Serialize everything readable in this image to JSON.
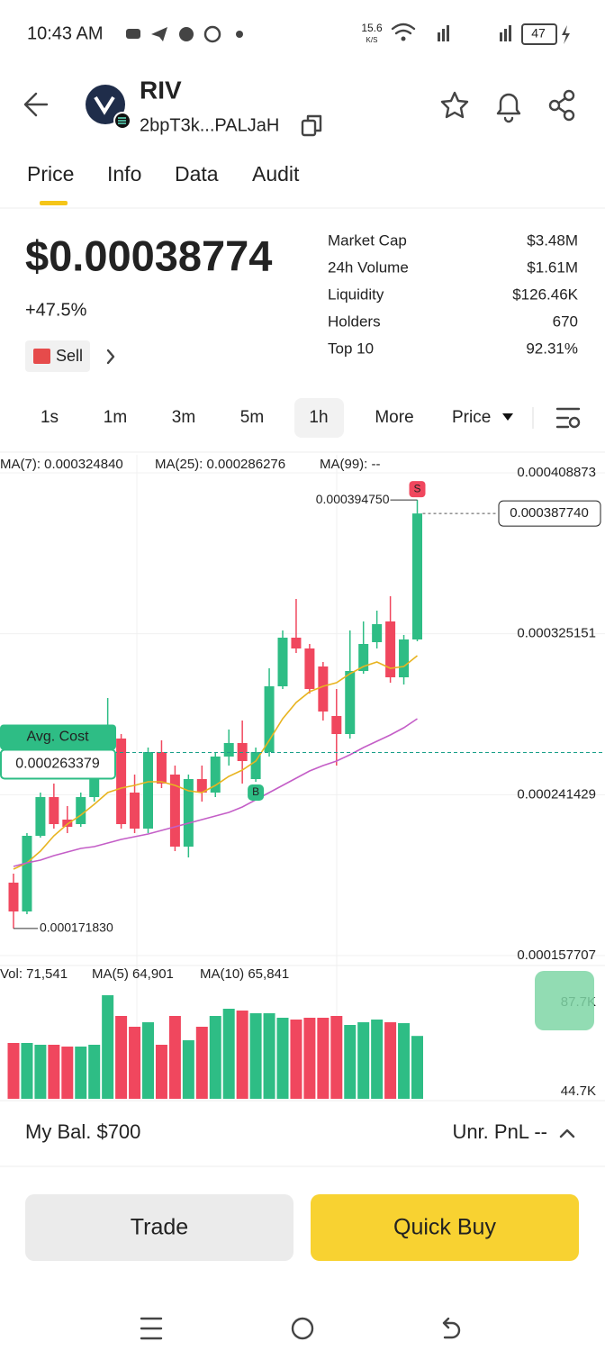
{
  "status_bar": {
    "time": "10:43 AM",
    "speed": "15.6",
    "speed_unit": "K/S",
    "battery": "47"
  },
  "header": {
    "symbol": "RIV",
    "address": "2bpT3k...PALJaH"
  },
  "tabs": [
    "Price",
    "Info",
    "Data",
    "Audit"
  ],
  "price": {
    "value": "$0.00038774",
    "change": "+47.5%",
    "sell": "Sell"
  },
  "stats": [
    {
      "label": "Market Cap",
      "value": "$3.48M"
    },
    {
      "label": "24h Volume",
      "value": "$1.61M"
    },
    {
      "label": "Liquidity",
      "value": "$126.46K"
    },
    {
      "label": "Holders",
      "value": "670"
    },
    {
      "label": "Top 10",
      "value": "92.31%"
    }
  ],
  "intervals": [
    "1s",
    "1m",
    "3m",
    "5m",
    "1h",
    "More"
  ],
  "price_menu": "Price",
  "chart_data": {
    "type": "candlestick",
    "up_color": "#2ebd85",
    "down_color": "#f0475e",
    "ylim": [
      0.000157707,
      0.000408873
    ],
    "yticks": [
      0.000408873,
      0.000325151,
      0.000241429,
      0.000157707
    ],
    "grid": true,
    "open": [
      0.00019566,
      0.000180665,
      0.000220027,
      0.000240177,
      0.000228462,
      0.000226119,
      0.000240177,
      0.000261264,
      0.000270636,
      0.00024252,
      0.000223776,
      0.000263607,
      0.000251892,
      0.000214404,
      0.000249549,
      0.00024252,
      0.000261264,
      0.000268293,
      0.000249549,
      0.000263607,
      0.000297815,
      0.000323119,
      0.000317496,
      0.000308124,
      0.000282351,
      0.000272979,
      0.000305781,
      0.000320776,
      0.000331554,
      0.000302501,
      0.000322182
    ],
    "high": [
      0.000200346,
      0.000221433,
      0.00024252,
      0.000247206,
      0.000235491,
      0.00024252,
      0.000272979,
      0.000291723,
      0.000272979,
      0.000251892,
      0.00026595,
      0.000269699,
      0.000256578,
      0.000251892,
      0.000256578,
      0.000263607,
      0.000275322,
      0.000280008,
      0.00026595,
      0.000307187,
      0.000326868,
      0.000343269,
      0.000319839,
      0.000310467,
      0.000296409,
      0.000326868,
      0.000331554,
      0.000337177,
      0.000344675,
      0.000324525,
      0.00039475
    ],
    "low": [
      0.00017183,
      0.000179259,
      0.00021909,
      0.000223776,
      0.000221433,
      0.000224713,
      0.000237834,
      0.000258921,
      0.000223776,
      0.000221433,
      0.000221433,
      0.000244863,
      0.000212061,
      0.000208781,
      0.000237834,
      0.000240177,
      0.000256578,
      0.000247206,
      0.000248143,
      0.000261264,
      0.000296409,
      0.000315153,
      0.000294066,
      0.000280008,
      0.000256578,
      0.000270636,
      0.000304375,
      0.000317496,
      0.000299689,
      0.000298752,
      0.000321245
    ],
    "close": [
      0.000180665,
      0.000220027,
      0.000240177,
      0.000226119,
      0.000224713,
      0.000240177,
      0.000270636,
      0.000270636,
      0.000226119,
      0.000223776,
      0.000263607,
      0.000247206,
      0.000214404,
      0.000249549,
      0.00024252,
      0.000261264,
      0.000268293,
      0.000258921,
      0.000263607,
      0.000297815,
      0.000323119,
      0.000317496,
      0.000296409,
      0.000284694,
      0.000272979,
      0.000305781,
      0.000319839,
      0.000330148,
      0.000302501,
      0.000322182,
      0.00038774
    ],
    "series": [
      {
        "name": "MA(7): 0.000324840",
        "color": "#e8b420",
        "values": [
          0.000202689,
          0.000205969,
          0.000212061,
          0.000220027,
          0.000226119,
          0.000230805,
          0.000236428,
          0.00024252,
          0.000244863,
          0.000246269,
          0.000248143,
          0.000248143,
          0.000246269,
          0.000243457,
          0.00024252,
          0.000246269,
          0.000250955,
          0.000254235,
          0.000258921,
          0.000269699,
          0.000280945,
          0.00028938,
          0.000295003,
          0.000297815,
          0.000299689,
          0.000304375,
          0.000308124,
          0.000310467,
          0.000307187,
          0.000308124,
          0.000313747
        ]
      },
      {
        "name": "MA(25): 0.000286276",
        "color": "#c45ec7",
        "values": [
          0.000204095,
          0.000205969,
          0.000207375,
          0.000209718,
          0.000211592,
          0.000213467,
          0.000214404,
          0.000216278,
          0.000218153,
          0.000219559,
          0.000220964,
          0.000222839,
          0.000224713,
          0.000226588,
          0.000228462,
          0.000230336,
          0.000232211,
          0.000235022,
          0.000238771,
          0.00024252,
          0.000246269,
          0.000250018,
          0.000253766,
          0.000256578,
          0.000258921,
          0.000262201,
          0.00026595,
          0.00026923,
          0.00027251,
          0.000276259,
          0.000280945
        ]
      }
    ],
    "ma99_label": "MA(99): --",
    "high_label": "0.000394750",
    "low_label": "0.000171830",
    "last_price": 0.00038774,
    "last_price_label": "0.000387740",
    "avg_cost_title": "Avg. Cost",
    "avg_cost": 0.000263379,
    "buy_marker": "B",
    "sell_marker": "S",
    "volume": {
      "legend": [
        "Vol: 71,541",
        "MA(5) 64,901",
        "MA(10) 65,841"
      ],
      "ylim": [
        44700,
        87700
      ],
      "yticks": [
        {
          "value": 87700,
          "label": "87.7K"
        },
        {
          "value": 44700,
          "label": "44.7K"
        }
      ],
      "values": [
        68152,
        68152,
        67284,
        67284,
        66415,
        66415,
        67284,
        91170,
        81181,
        75970,
        78141,
        67284,
        81181,
        69455,
        75970,
        81181,
        84656,
        83787,
        82484,
        82484,
        80313,
        79444,
        80313,
        80313,
        81181,
        76838,
        78141,
        79444,
        78141,
        77707,
        71541
      ]
    }
  },
  "bottom": {
    "balance": "My Bal. $700",
    "pnl": "Unr. PnL --"
  },
  "buttons": {
    "trade": "Trade",
    "quick_buy": "Quick Buy"
  }
}
